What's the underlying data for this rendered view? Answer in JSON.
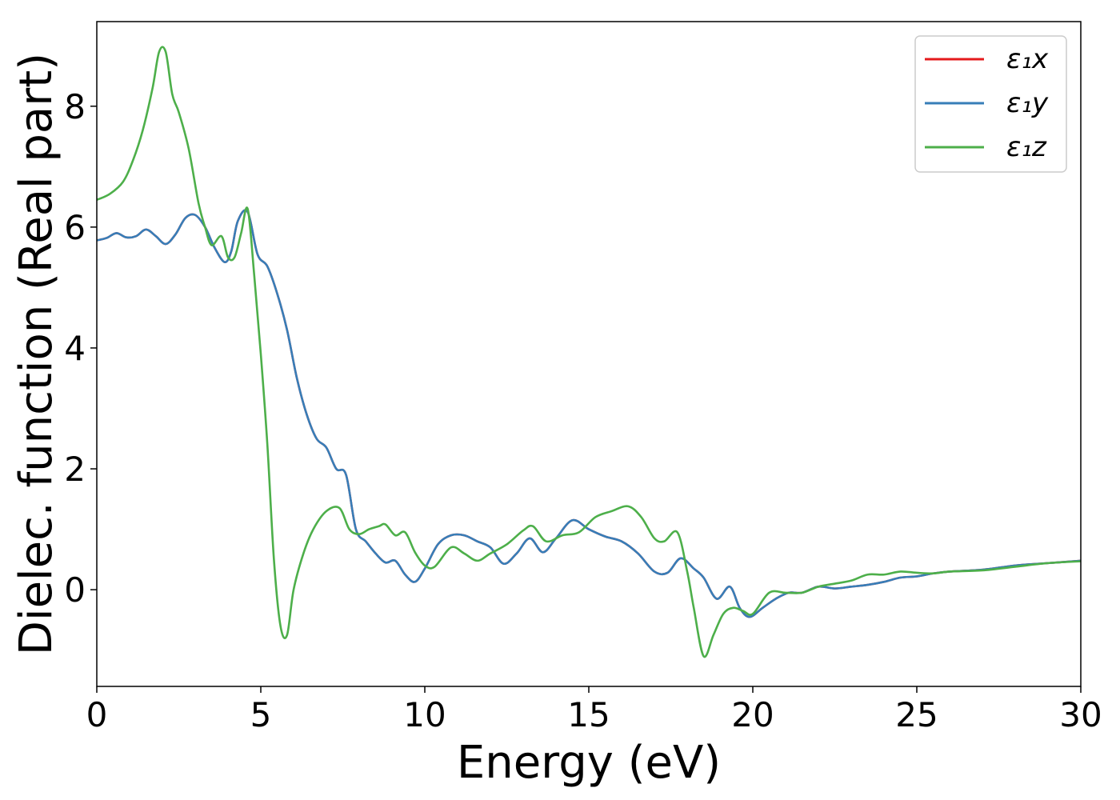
{
  "chart_data": {
    "type": "line",
    "title": "",
    "xlabel": "Energy (eV)",
    "ylabel": "Dielec. function (Real part)",
    "xlim": [
      0,
      30
    ],
    "ylim": [
      -1.6,
      9.4
    ],
    "xticks": [
      0,
      5,
      10,
      15,
      20,
      25,
      30
    ],
    "yticks": [
      0,
      2,
      4,
      6,
      8
    ],
    "grid": false,
    "legend_position": "top-right",
    "legend": [
      "ε₁x",
      "ε₁y",
      "ε₁z"
    ],
    "series": [
      {
        "name": "ε₁x",
        "color": "#e41a1c",
        "x": [
          0,
          0.3,
          0.6,
          0.9,
          1.2,
          1.5,
          1.8,
          2.1,
          2.4,
          2.7,
          3.0,
          3.3,
          3.6,
          3.9,
          4.1,
          4.3,
          4.6,
          4.9,
          5.2,
          5.5,
          5.8,
          6.1,
          6.4,
          6.7,
          7.0,
          7.3,
          7.6,
          7.9,
          8.2,
          8.5,
          8.8,
          9.1,
          9.4,
          9.7,
          10.0,
          10.4,
          10.8,
          11.2,
          11.6,
          12.0,
          12.4,
          12.8,
          13.2,
          13.6,
          14.0,
          14.5,
          15.0,
          15.5,
          16.0,
          16.5,
          17.0,
          17.4,
          17.8,
          18.2,
          18.5,
          18.9,
          19.3,
          19.6,
          19.9,
          20.3,
          20.7,
          21.1,
          21.5,
          22.0,
          22.5,
          23.0,
          23.5,
          24.0,
          24.5,
          25.0,
          25.5,
          26.0,
          27.0,
          28.0,
          29.0,
          30.0
        ],
        "values": [
          5.78,
          5.82,
          5.9,
          5.83,
          5.85,
          5.96,
          5.85,
          5.72,
          5.88,
          6.15,
          6.2,
          6.0,
          5.65,
          5.42,
          5.6,
          6.1,
          6.25,
          5.55,
          5.35,
          4.9,
          4.3,
          3.5,
          2.9,
          2.5,
          2.35,
          2.0,
          1.9,
          1.0,
          0.8,
          0.6,
          0.45,
          0.48,
          0.25,
          0.13,
          0.35,
          0.75,
          0.9,
          0.9,
          0.8,
          0.7,
          0.43,
          0.6,
          0.85,
          0.62,
          0.85,
          1.15,
          1.0,
          0.88,
          0.8,
          0.6,
          0.3,
          0.28,
          0.52,
          0.35,
          0.2,
          -0.15,
          0.05,
          -0.3,
          -0.45,
          -0.3,
          -0.15,
          -0.05,
          -0.05,
          0.05,
          0.02,
          0.05,
          0.08,
          0.13,
          0.2,
          0.22,
          0.27,
          0.3,
          0.33,
          0.4,
          0.44,
          0.48
        ]
      },
      {
        "name": "ε₁y",
        "color": "#377eb8",
        "x": [
          0,
          0.3,
          0.6,
          0.9,
          1.2,
          1.5,
          1.8,
          2.1,
          2.4,
          2.7,
          3.0,
          3.3,
          3.6,
          3.9,
          4.1,
          4.3,
          4.6,
          4.9,
          5.2,
          5.5,
          5.8,
          6.1,
          6.4,
          6.7,
          7.0,
          7.3,
          7.6,
          7.9,
          8.2,
          8.5,
          8.8,
          9.1,
          9.4,
          9.7,
          10.0,
          10.4,
          10.8,
          11.2,
          11.6,
          12.0,
          12.4,
          12.8,
          13.2,
          13.6,
          14.0,
          14.5,
          15.0,
          15.5,
          16.0,
          16.5,
          17.0,
          17.4,
          17.8,
          18.2,
          18.5,
          18.9,
          19.3,
          19.6,
          19.9,
          20.3,
          20.7,
          21.1,
          21.5,
          22.0,
          22.5,
          23.0,
          23.5,
          24.0,
          24.5,
          25.0,
          25.5,
          26.0,
          27.0,
          28.0,
          29.0,
          30.0
        ],
        "values": [
          5.78,
          5.82,
          5.9,
          5.83,
          5.85,
          5.96,
          5.85,
          5.72,
          5.88,
          6.15,
          6.2,
          6.0,
          5.65,
          5.42,
          5.6,
          6.1,
          6.25,
          5.55,
          5.35,
          4.9,
          4.3,
          3.5,
          2.9,
          2.5,
          2.35,
          2.0,
          1.9,
          1.0,
          0.8,
          0.6,
          0.45,
          0.48,
          0.25,
          0.13,
          0.35,
          0.75,
          0.9,
          0.9,
          0.8,
          0.7,
          0.43,
          0.6,
          0.85,
          0.62,
          0.85,
          1.15,
          1.0,
          0.88,
          0.8,
          0.6,
          0.3,
          0.28,
          0.52,
          0.35,
          0.2,
          -0.15,
          0.05,
          -0.3,
          -0.45,
          -0.3,
          -0.15,
          -0.05,
          -0.05,
          0.05,
          0.02,
          0.05,
          0.08,
          0.13,
          0.2,
          0.22,
          0.27,
          0.3,
          0.33,
          0.4,
          0.44,
          0.48
        ]
      },
      {
        "name": "ε₁z",
        "color": "#4daf4a",
        "x": [
          0,
          0.4,
          0.8,
          1.1,
          1.4,
          1.7,
          1.9,
          2.1,
          2.3,
          2.5,
          2.8,
          3.1,
          3.3,
          3.5,
          3.8,
          4.0,
          4.2,
          4.4,
          4.6,
          4.8,
          5.0,
          5.2,
          5.4,
          5.6,
          5.8,
          6.0,
          6.3,
          6.6,
          7.0,
          7.4,
          7.7,
          8.0,
          8.3,
          8.6,
          8.8,
          9.1,
          9.4,
          9.7,
          10.0,
          10.3,
          10.8,
          11.2,
          11.6,
          12.0,
          12.5,
          13.0,
          13.3,
          13.7,
          14.2,
          14.7,
          15.2,
          15.7,
          16.2,
          16.6,
          17.0,
          17.3,
          17.7,
          18.0,
          18.2,
          18.5,
          18.8,
          19.1,
          19.4,
          19.7,
          20.0,
          20.5,
          21.0,
          21.5,
          22.0,
          22.5,
          23.0,
          23.5,
          24.0,
          24.5,
          25.0,
          25.5,
          26.0,
          27.0,
          28.0,
          29.0,
          30.0
        ],
        "values": [
          6.45,
          6.55,
          6.75,
          7.1,
          7.6,
          8.3,
          8.9,
          8.9,
          8.2,
          7.9,
          7.3,
          6.4,
          6.0,
          5.7,
          5.85,
          5.5,
          5.5,
          5.9,
          6.3,
          5.2,
          3.9,
          2.4,
          0.5,
          -0.6,
          -0.75,
          0.0,
          0.6,
          1.0,
          1.3,
          1.35,
          1.0,
          0.92,
          1.0,
          1.05,
          1.08,
          0.9,
          0.95,
          0.62,
          0.4,
          0.38,
          0.7,
          0.6,
          0.48,
          0.6,
          0.75,
          0.98,
          1.05,
          0.8,
          0.9,
          0.95,
          1.2,
          1.3,
          1.38,
          1.2,
          0.85,
          0.8,
          0.95,
          0.3,
          -0.3,
          -1.1,
          -0.75,
          -0.4,
          -0.3,
          -0.35,
          -0.4,
          -0.05,
          -0.05,
          -0.05,
          0.05,
          0.1,
          0.15,
          0.25,
          0.25,
          0.3,
          0.28,
          0.27,
          0.3,
          0.32,
          0.38,
          0.44,
          0.47
        ]
      }
    ]
  }
}
